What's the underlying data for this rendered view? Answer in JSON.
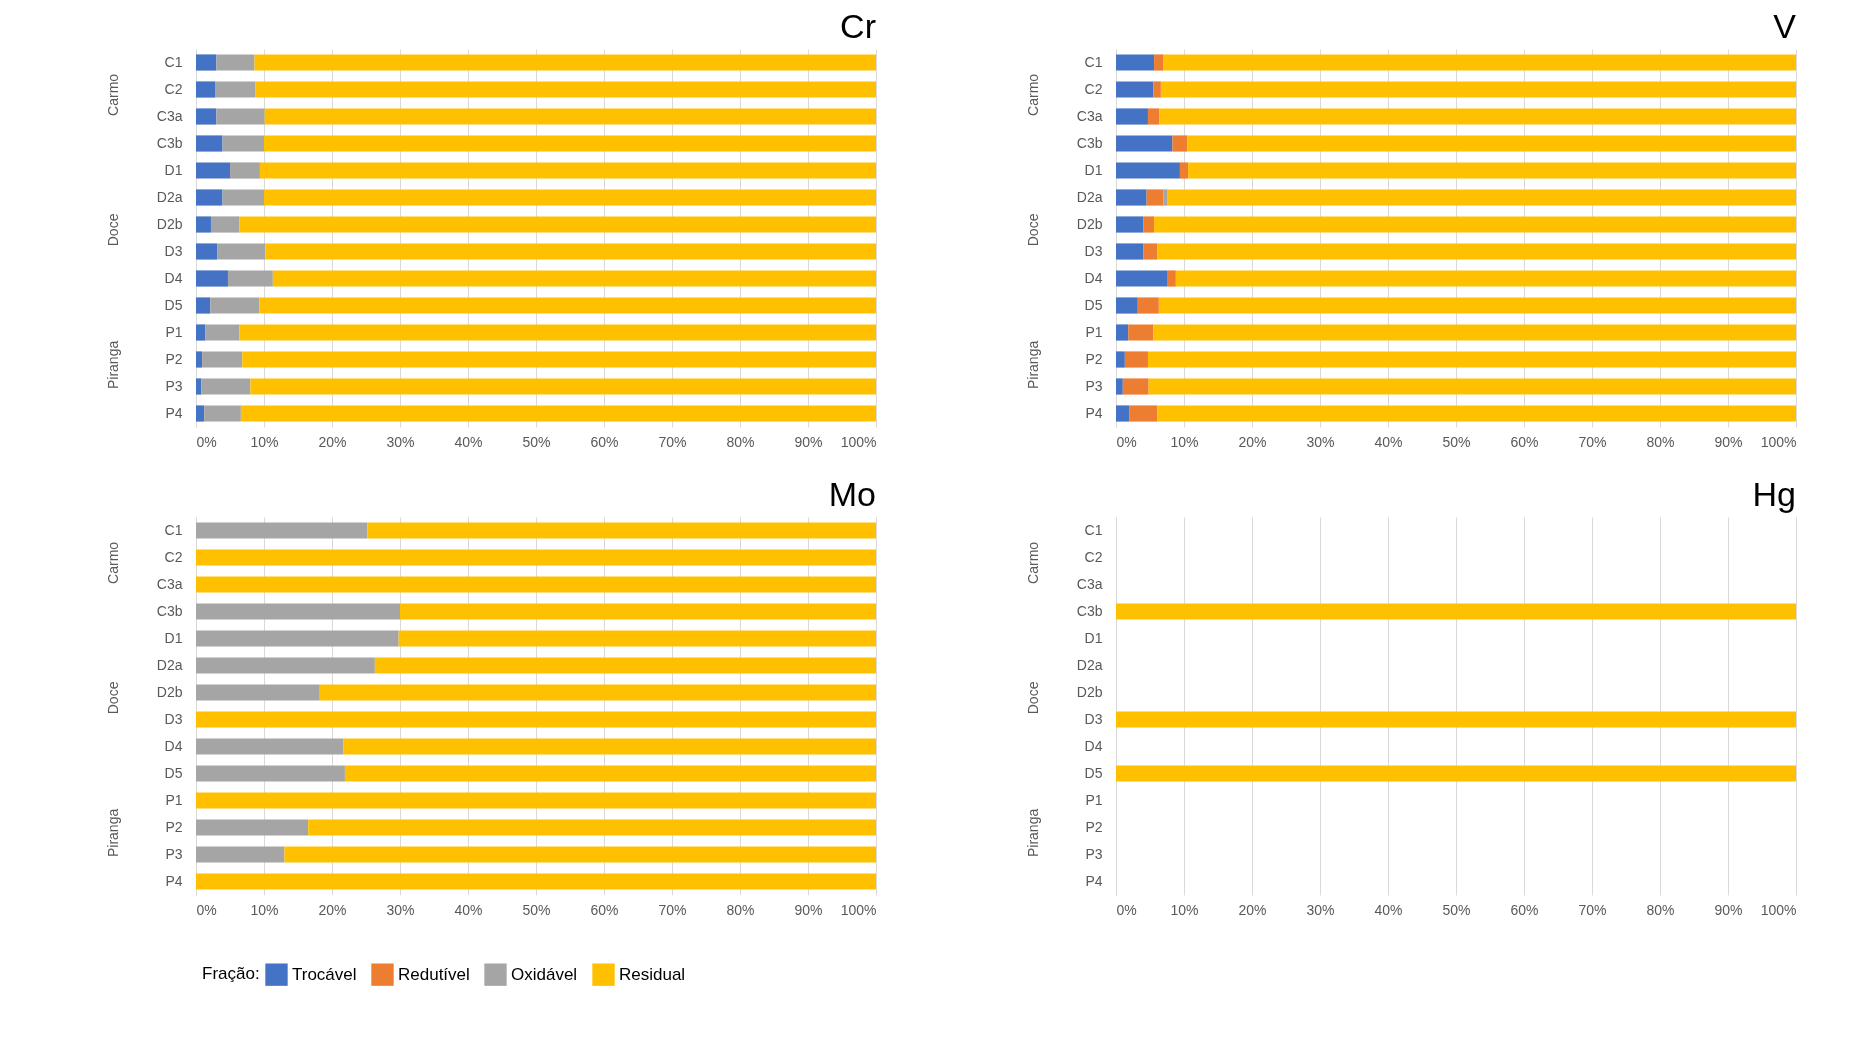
{
  "chart_data": [
    {
      "type": "bar",
      "title": "Cr",
      "orientation": "horizontal",
      "stacked": true,
      "grid": "x",
      "legend": "bottom",
      "legend_title": "Fração:",
      "categories": [
        "C1",
        "C2",
        "C3a",
        "C3b",
        "D1",
        "D2a",
        "D2b",
        "D3",
        "D4",
        "D5",
        "P1",
        "P2",
        "P3",
        "P4"
      ],
      "annotations": [
        "Carmo",
        "Doce",
        "Piranga"
      ],
      "xlim": [
        0,
        100
      ],
      "xticks": [
        {
          "value": 0,
          "label": "0%"
        },
        {
          "value": 10,
          "label": "10%"
        },
        {
          "value": 20,
          "label": "20%"
        },
        {
          "value": 30,
          "label": "30%"
        },
        {
          "value": 40,
          "label": "40%"
        },
        {
          "value": 50,
          "label": "50%"
        },
        {
          "value": 60,
          "label": "60%"
        },
        {
          "value": 70,
          "label": "70%"
        },
        {
          "value": 80,
          "label": "80%"
        },
        {
          "value": 90,
          "label": "90%"
        },
        {
          "value": 100,
          "label": "100%"
        }
      ],
      "series": [
        {
          "name": "Trocável",
          "color": "#4472c4",
          "values": [
            3.0,
            2.8,
            3.0,
            3.9,
            5.0,
            3.9,
            2.2,
            3.1,
            4.7,
            2.1,
            1.4,
            0.9,
            0.8,
            1.2
          ]
        },
        {
          "name": "Redutível",
          "color": "#ed7d31",
          "values": [
            null,
            null,
            null,
            null,
            null,
            null,
            null,
            null,
            null,
            null,
            null,
            null,
            null,
            null
          ]
        },
        {
          "name": "Oxidável",
          "color": "#a5a5a5",
          "values": [
            5.6,
            5.9,
            7.1,
            6.1,
            4.4,
            6.1,
            4.2,
            7.1,
            6.6,
            7.2,
            5.0,
            5.9,
            7.2,
            5.4
          ]
        },
        {
          "name": "Residual",
          "color": "#ffc000",
          "values": [
            91.4,
            91.3,
            89.9,
            90.0,
            90.6,
            90.0,
            93.6,
            89.8,
            88.7,
            90.7,
            93.6,
            93.2,
            92.0,
            93.4
          ]
        }
      ]
    },
    {
      "type": "bar",
      "title": "V",
      "orientation": "horizontal",
      "stacked": true,
      "grid": "x",
      "categories": [
        "C1",
        "C2",
        "C3a",
        "C3b",
        "D1",
        "D2a",
        "D2b",
        "D3",
        "D4",
        "D5",
        "P1",
        "P2",
        "P3",
        "P4"
      ],
      "annotations": [
        "Carmo",
        "Doce",
        "Piranga"
      ],
      "xlim": [
        0,
        100
      ],
      "xticks": [
        {
          "value": 0,
          "label": "0%"
        },
        {
          "value": 10,
          "label": "10%"
        },
        {
          "value": 20,
          "label": "20%"
        },
        {
          "value": 30,
          "label": "30%"
        },
        {
          "value": 40,
          "label": "40%"
        },
        {
          "value": 50,
          "label": "50%"
        },
        {
          "value": 60,
          "label": "60%"
        },
        {
          "value": 70,
          "label": "70%"
        },
        {
          "value": 80,
          "label": "80%"
        },
        {
          "value": 90,
          "label": "90%"
        },
        {
          "value": 100,
          "label": "100%"
        }
      ],
      "series": [
        {
          "color": "#4472c4",
          "values": [
            5.6,
            5.5,
            4.7,
            8.3,
            9.4,
            4.5,
            4.0,
            4.0,
            7.5,
            3.2,
            1.8,
            1.3,
            1.0,
            2.0
          ]
        },
        {
          "color": "#ed7d31",
          "values": [
            1.4,
            1.1,
            1.7,
            2.2,
            1.2,
            2.5,
            1.6,
            2.1,
            1.3,
            3.1,
            3.7,
            3.4,
            3.8,
            4.1
          ]
        },
        {
          "color": "#a5a5a5",
          "values": [
            null,
            null,
            null,
            null,
            null,
            0.6,
            null,
            null,
            null,
            null,
            null,
            null,
            null,
            null
          ]
        },
        {
          "color": "#ffc000",
          "values": [
            93.0,
            93.4,
            93.6,
            89.5,
            89.4,
            92.4,
            94.4,
            93.9,
            91.2,
            93.7,
            94.5,
            95.3,
            95.2,
            93.9
          ]
        }
      ]
    },
    {
      "type": "bar",
      "title": "Mo",
      "orientation": "horizontal",
      "stacked": true,
      "grid": "x",
      "categories": [
        "C1",
        "C2",
        "C3a",
        "C3b",
        "D1",
        "D2a",
        "D2b",
        "D3",
        "D4",
        "D5",
        "P1",
        "P2",
        "P3",
        "P4"
      ],
      "annotations": [
        "Carmo",
        "Doce",
        "Piranga"
      ],
      "xlim": [
        0,
        100
      ],
      "xticks": [
        {
          "value": 0,
          "label": "0%"
        },
        {
          "value": 10,
          "label": "10%"
        },
        {
          "value": 20,
          "label": "20%"
        },
        {
          "value": 30,
          "label": "30%"
        },
        {
          "value": 40,
          "label": "40%"
        },
        {
          "value": 50,
          "label": "50%"
        },
        {
          "value": 60,
          "label": "60%"
        },
        {
          "value": 70,
          "label": "70%"
        },
        {
          "value": 80,
          "label": "80%"
        },
        {
          "value": 90,
          "label": "90%"
        },
        {
          "value": 100,
          "label": "100%"
        }
      ],
      "series": [
        {
          "color": "#4472c4",
          "values": [
            null,
            null,
            null,
            null,
            null,
            null,
            null,
            null,
            null,
            null,
            null,
            null,
            null,
            null
          ]
        },
        {
          "color": "#ed7d31",
          "values": [
            null,
            null,
            null,
            null,
            null,
            null,
            null,
            null,
            null,
            null,
            null,
            null,
            null,
            null
          ]
        },
        {
          "color": "#a5a5a5",
          "values": [
            25.2,
            null,
            null,
            30.0,
            29.8,
            26.3,
            18.2,
            null,
            21.7,
            21.9,
            null,
            16.5,
            13.0,
            null
          ]
        },
        {
          "color": "#ffc000",
          "values": [
            74.8,
            100,
            100,
            70.0,
            70.2,
            73.7,
            81.8,
            100,
            78.3,
            78.1,
            100,
            83.5,
            87.0,
            100
          ]
        }
      ]
    },
    {
      "type": "bar",
      "title": "Hg",
      "orientation": "horizontal",
      "stacked": true,
      "grid": "x",
      "categories": [
        "C1",
        "C2",
        "C3a",
        "C3b",
        "D1",
        "D2a",
        "D2b",
        "D3",
        "D4",
        "D5",
        "P1",
        "P2",
        "P3",
        "P4"
      ],
      "annotations": [
        "Carmo",
        "Doce",
        "Piranga"
      ],
      "xlim": [
        0,
        100
      ],
      "xticks": [
        {
          "value": 0,
          "label": "0%"
        },
        {
          "value": 10,
          "label": "10%"
        },
        {
          "value": 20,
          "label": "20%"
        },
        {
          "value": 30,
          "label": "30%"
        },
        {
          "value": 40,
          "label": "40%"
        },
        {
          "value": 50,
          "label": "50%"
        },
        {
          "value": 60,
          "label": "60%"
        },
        {
          "value": 70,
          "label": "70%"
        },
        {
          "value": 80,
          "label": "80%"
        },
        {
          "value": 90,
          "label": "90%"
        },
        {
          "value": 100,
          "label": "100%"
        }
      ],
      "series": [
        {
          "color": "#4472c4",
          "values": [
            null,
            null,
            null,
            null,
            null,
            null,
            null,
            null,
            null,
            null,
            null,
            null,
            null,
            null
          ]
        },
        {
          "color": "#ed7d31",
          "values": [
            null,
            null,
            null,
            null,
            null,
            null,
            null,
            null,
            null,
            null,
            null,
            null,
            null,
            null
          ]
        },
        {
          "color": "#a5a5a5",
          "values": [
            null,
            null,
            null,
            null,
            null,
            null,
            null,
            null,
            null,
            null,
            null,
            null,
            null,
            null
          ]
        },
        {
          "color": "#ffc000",
          "values": [
            null,
            null,
            null,
            100,
            null,
            null,
            null,
            100,
            null,
            100,
            null,
            null,
            null,
            null
          ]
        }
      ]
    }
  ]
}
